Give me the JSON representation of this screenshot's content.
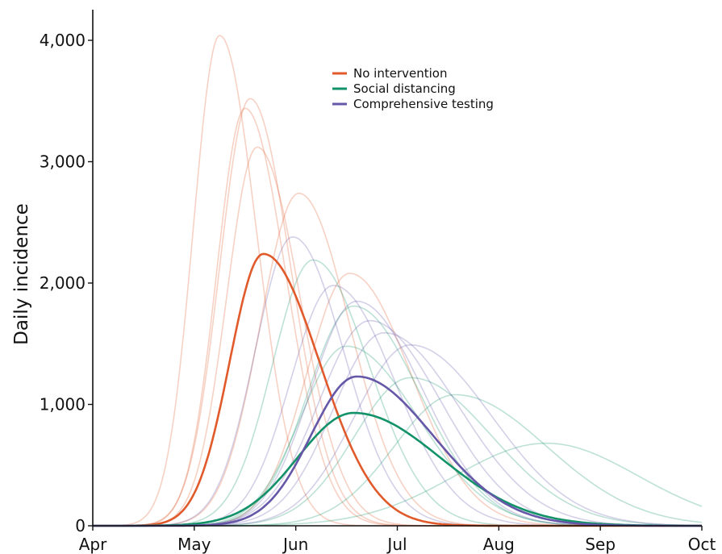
{
  "chart_data": {
    "type": "line",
    "title": "",
    "xlabel": "",
    "ylabel": "Daily incidence",
    "x_ticks": [
      "Apr",
      "May",
      "Jun",
      "Jul",
      "Aug",
      "Sep",
      "Oct"
    ],
    "y_ticks": [
      "0",
      "1,000",
      "2,000",
      "3,000",
      "4,000"
    ],
    "xlim_months": [
      0,
      6
    ],
    "ylim": [
      0,
      4300
    ],
    "grid": false,
    "legend_position": "top-center",
    "legend": [
      {
        "name": "No intervention",
        "color": "#e05a2b"
      },
      {
        "name": "Social distancing",
        "color": "#13926a"
      },
      {
        "name": "Comprehensive testing",
        "color": "#6657a8"
      }
    ],
    "faint_opacity": 0.28,
    "series": [
      {
        "name": "No intervention",
        "group": "no-intervention",
        "highlight": true,
        "peak_x": 1.68,
        "peak": 2240,
        "sigma_left": 0.33,
        "sigma_right": 0.55
      },
      {
        "name": "Social distancing",
        "group": "social-distancing",
        "highlight": true,
        "peak_x": 2.57,
        "peak": 930,
        "sigma_left": 0.55,
        "sigma_right": 0.85
      },
      {
        "name": "Comprehensive testing",
        "group": "comprehensive-testing",
        "highlight": true,
        "peak_x": 2.6,
        "peak": 1230,
        "sigma_left": 0.45,
        "sigma_right": 0.75
      },
      {
        "group": "no-intervention",
        "highlight": false,
        "peak_x": 1.25,
        "peak": 4040,
        "sigma_left": 0.26,
        "sigma_right": 0.36
      },
      {
        "group": "no-intervention",
        "highlight": false,
        "peak_x": 1.55,
        "peak": 3520,
        "sigma_left": 0.3,
        "sigma_right": 0.4
      },
      {
        "group": "no-intervention",
        "highlight": false,
        "peak_x": 1.5,
        "peak": 3440,
        "sigma_left": 0.28,
        "sigma_right": 0.4
      },
      {
        "group": "no-intervention",
        "highlight": false,
        "peak_x": 1.62,
        "peak": 3120,
        "sigma_left": 0.3,
        "sigma_right": 0.42
      },
      {
        "group": "no-intervention",
        "highlight": false,
        "peak_x": 2.03,
        "peak": 2740,
        "sigma_left": 0.38,
        "sigma_right": 0.5
      },
      {
        "group": "no-intervention",
        "highlight": false,
        "peak_x": 2.53,
        "peak": 2080,
        "sigma_left": 0.42,
        "sigma_right": 0.6
      },
      {
        "group": "social-distancing",
        "highlight": false,
        "peak_x": 2.17,
        "peak": 2190,
        "sigma_left": 0.4,
        "sigma_right": 0.55
      },
      {
        "group": "social-distancing",
        "highlight": false,
        "peak_x": 2.57,
        "peak": 1810,
        "sigma_left": 0.45,
        "sigma_right": 0.65
      },
      {
        "group": "social-distancing",
        "highlight": false,
        "peak_x": 2.5,
        "peak": 1480,
        "sigma_left": 0.45,
        "sigma_right": 0.7
      },
      {
        "group": "social-distancing",
        "highlight": false,
        "peak_x": 3.13,
        "peak": 1220,
        "sigma_left": 0.55,
        "sigma_right": 0.8
      },
      {
        "group": "social-distancing",
        "highlight": false,
        "peak_x": 3.57,
        "peak": 1080,
        "sigma_left": 0.6,
        "sigma_right": 0.9
      },
      {
        "group": "social-distancing",
        "highlight": false,
        "peak_x": 4.47,
        "peak": 680,
        "sigma_left": 0.9,
        "sigma_right": 0.9
      },
      {
        "group": "comprehensive-testing",
        "highlight": false,
        "peak_x": 1.97,
        "peak": 2380,
        "sigma_left": 0.37,
        "sigma_right": 0.5
      },
      {
        "group": "comprehensive-testing",
        "highlight": false,
        "peak_x": 2.37,
        "peak": 1980,
        "sigma_left": 0.42,
        "sigma_right": 0.6
      },
      {
        "group": "comprehensive-testing",
        "highlight": false,
        "peak_x": 2.6,
        "peak": 1850,
        "sigma_left": 0.45,
        "sigma_right": 0.65
      },
      {
        "group": "comprehensive-testing",
        "highlight": false,
        "peak_x": 2.73,
        "peak": 1690,
        "sigma_left": 0.5,
        "sigma_right": 0.7
      },
      {
        "group": "comprehensive-testing",
        "highlight": false,
        "peak_x": 2.87,
        "peak": 1590,
        "sigma_left": 0.5,
        "sigma_right": 0.75
      },
      {
        "group": "comprehensive-testing",
        "highlight": false,
        "peak_x": 3.13,
        "peak": 1490,
        "sigma_left": 0.55,
        "sigma_right": 0.8
      }
    ]
  }
}
